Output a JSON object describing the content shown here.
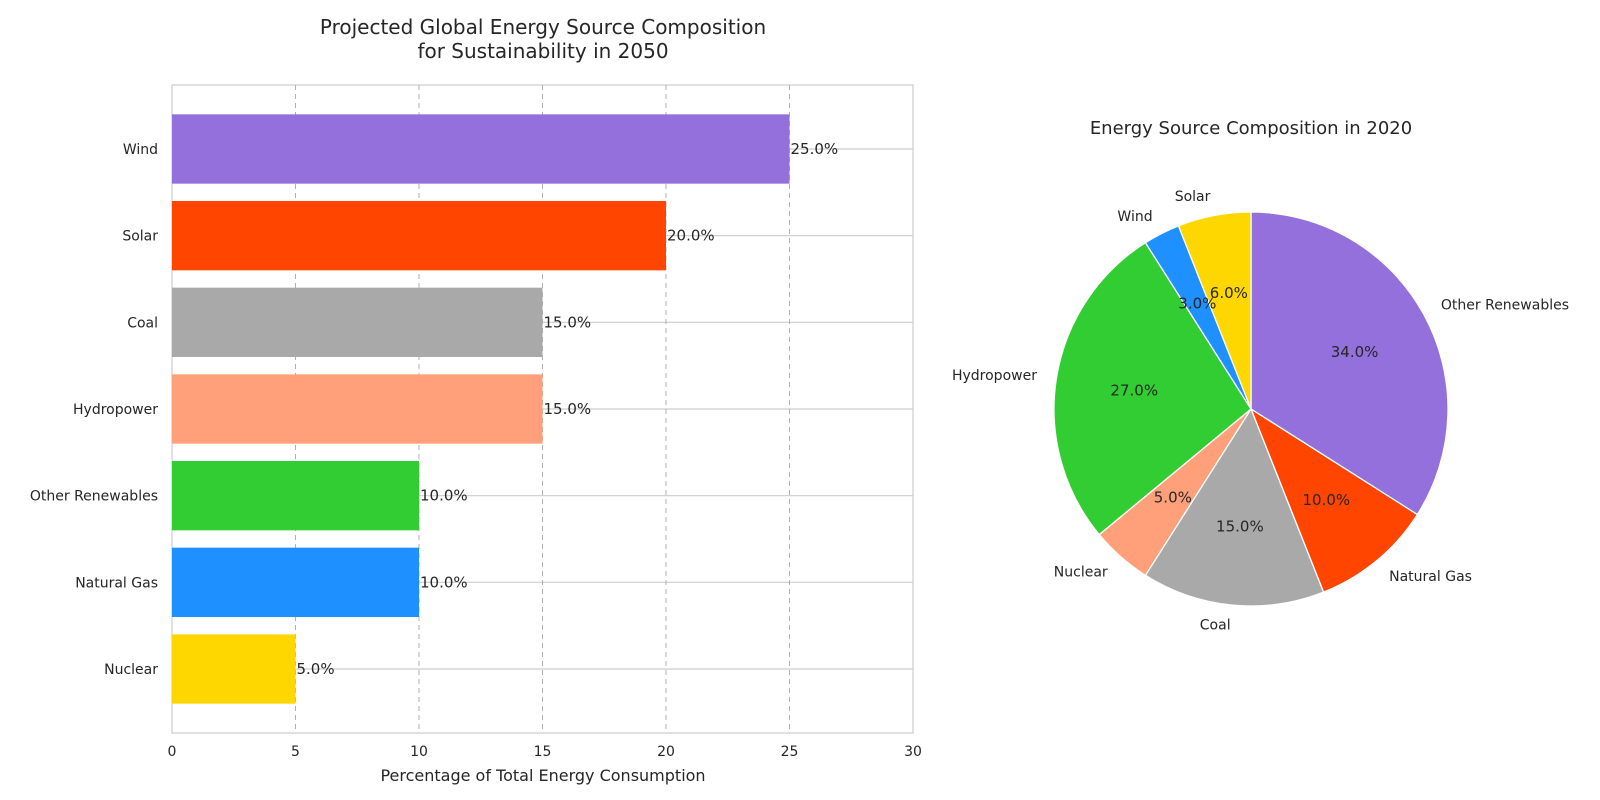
{
  "chart_data": [
    {
      "type": "bar",
      "orientation": "horizontal",
      "title_lines": [
        "Projected Global Energy Source Composition",
        "for Sustainability in 2050"
      ],
      "xlabel": "Percentage of Total Energy Consumption",
      "ylabel": "",
      "xlim": [
        0,
        30
      ],
      "xticks": [
        "0",
        "5",
        "10",
        "15",
        "20",
        "25",
        "30"
      ],
      "grid": true,
      "categories": [
        "Wind",
        "Solar",
        "Coal",
        "Hydropower",
        "Other Renewables",
        "Natural Gas",
        "Nuclear"
      ],
      "values": [
        25,
        20,
        15,
        15,
        10,
        10,
        5
      ],
      "value_labels": [
        "25.0%",
        "20.0%",
        "15.0%",
        "15.0%",
        "10.0%",
        "10.0%",
        "5.0%"
      ],
      "colors": [
        "#9370DB",
        "#FF4500",
        "#A9A9A9",
        "#FFA07A",
        "#32CD32",
        "#1E90FF",
        "#FFD700"
      ]
    },
    {
      "type": "pie",
      "title": "Energy Source Composition in 2020",
      "start_angle_deg": 90,
      "direction": "clockwise",
      "slices": [
        {
          "label": "Other Renewables",
          "value": 34,
          "pct_label": "34.0%",
          "color": "#9370DB"
        },
        {
          "label": "Natural Gas",
          "value": 10,
          "pct_label": "10.0%",
          "color": "#FF4500"
        },
        {
          "label": "Coal",
          "value": 15,
          "pct_label": "15.0%",
          "color": "#A9A9A9"
        },
        {
          "label": "Nuclear",
          "value": 5,
          "pct_label": "5.0%",
          "color": "#FFA07A"
        },
        {
          "label": "Hydropower",
          "value": 27,
          "pct_label": "27.0%",
          "color": "#32CD32"
        },
        {
          "label": "Wind",
          "value": 3,
          "pct_label": "3.0%",
          "color": "#1E90FF"
        },
        {
          "label": "Solar",
          "value": 6,
          "pct_label": "6.0%",
          "color": "#FFD700"
        }
      ]
    }
  ]
}
